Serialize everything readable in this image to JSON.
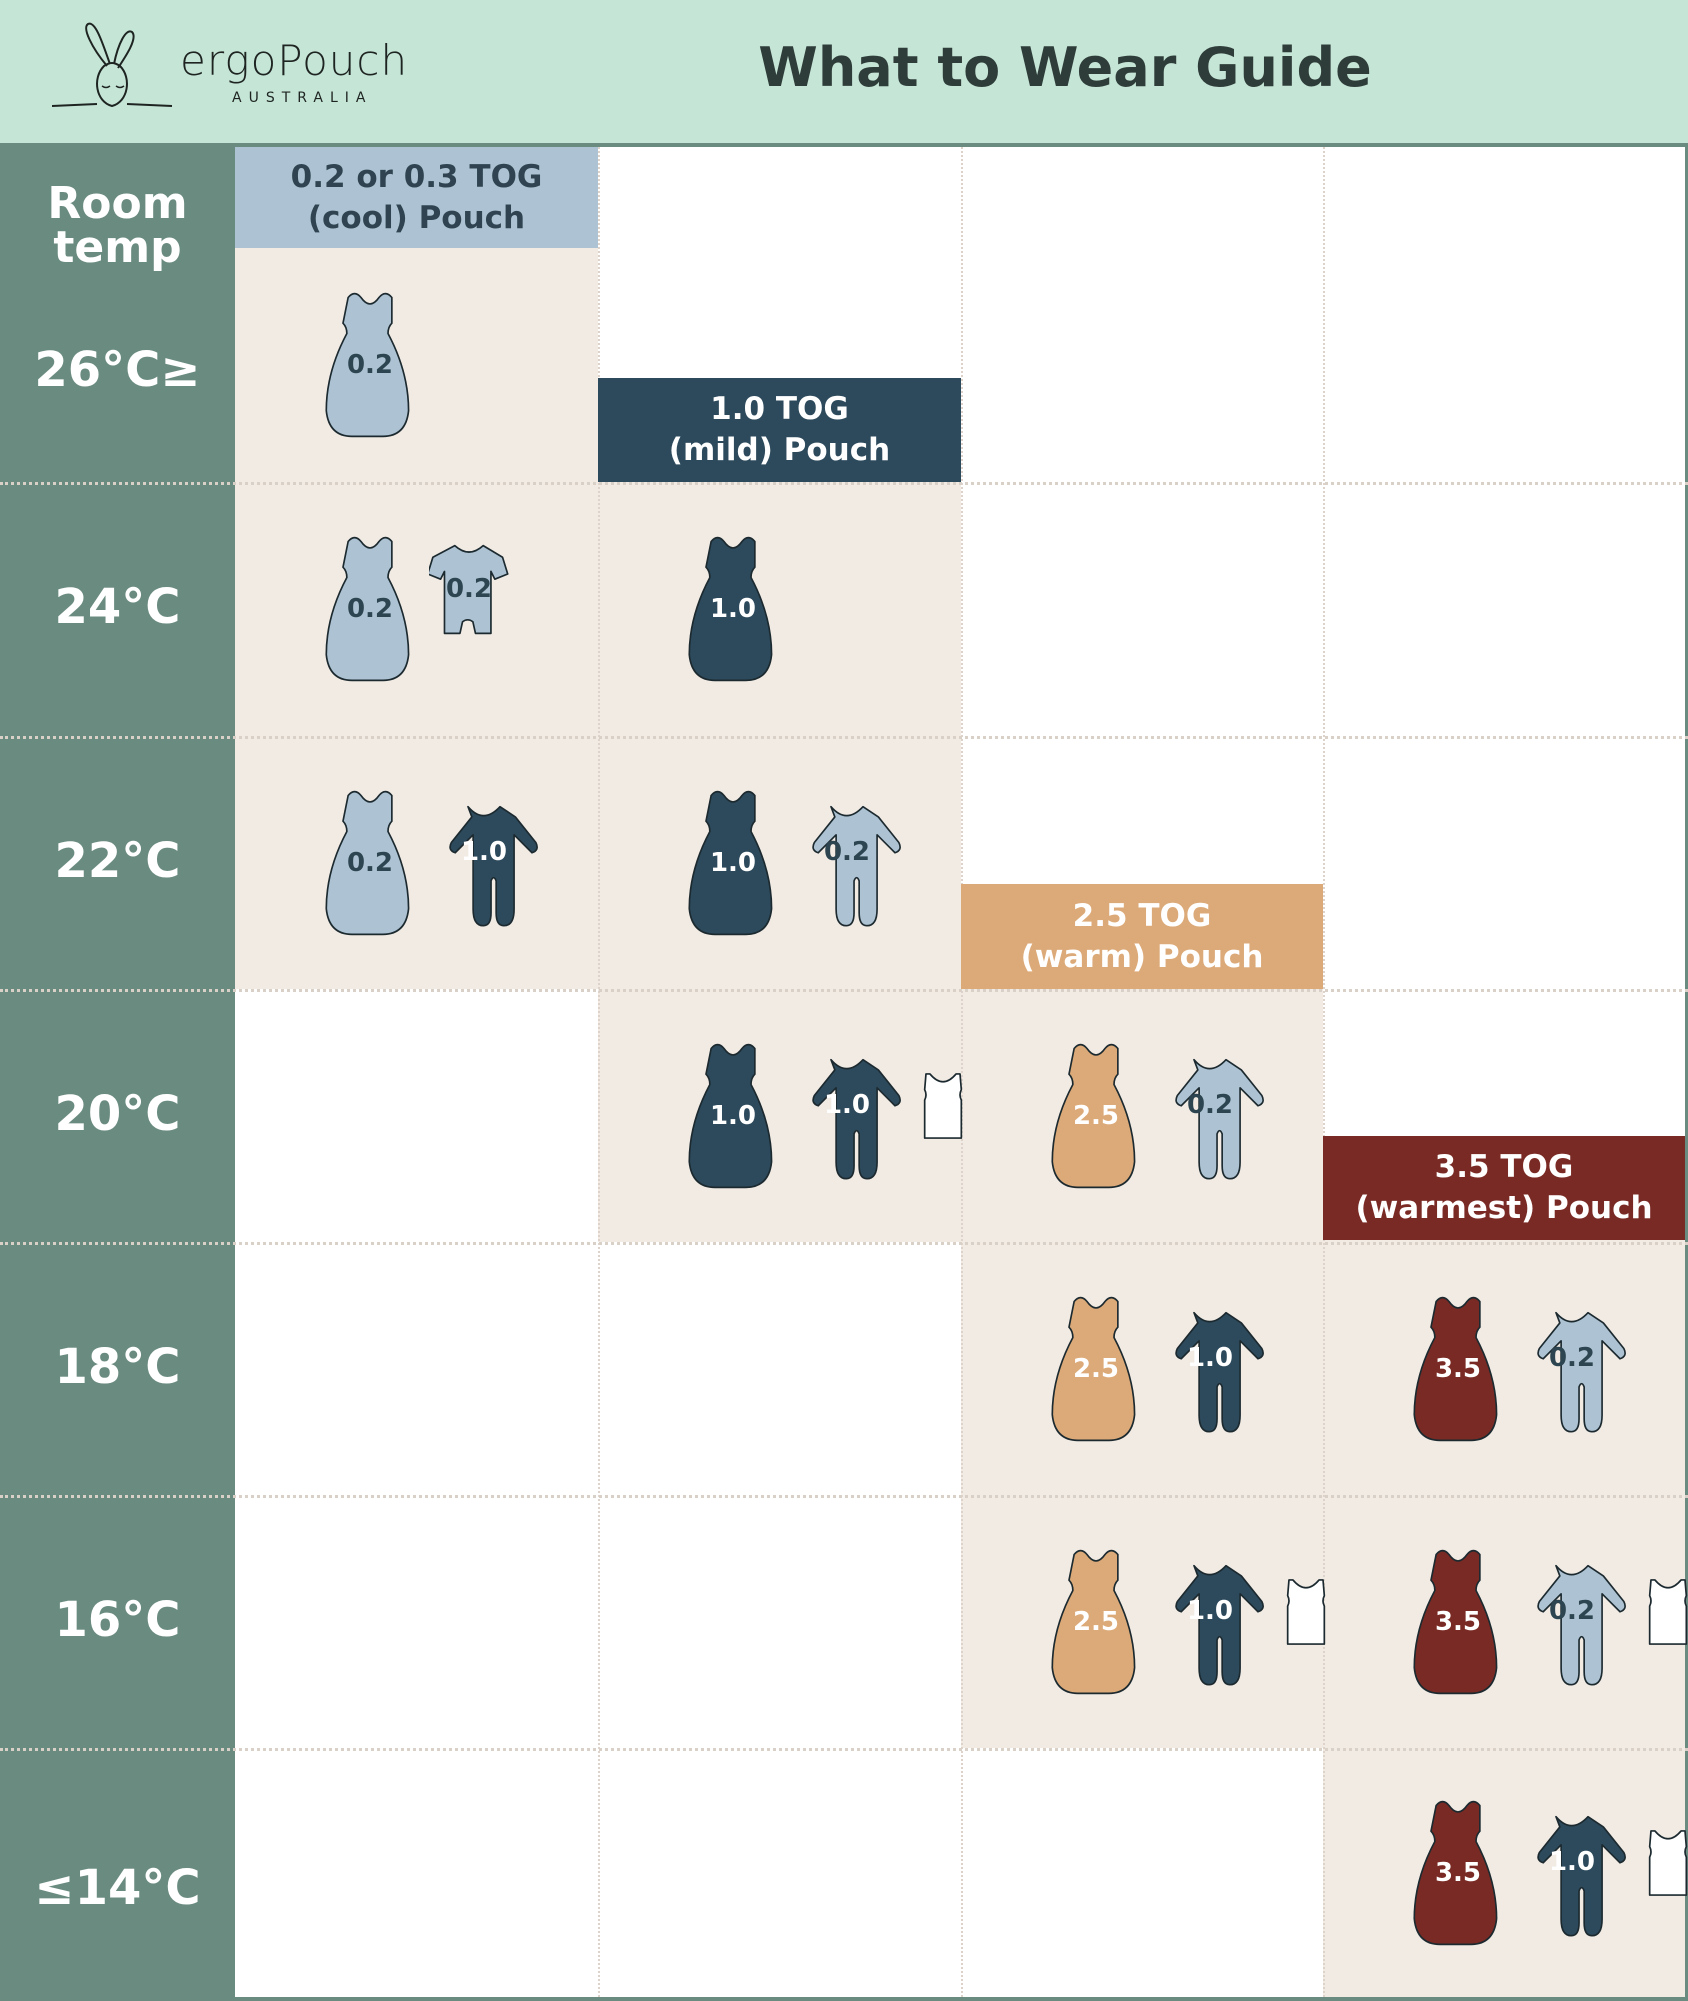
{
  "header": {
    "brand": "ergoPouch",
    "brand_sub": "AUSTRALIA",
    "title": "What to Wear Guide"
  },
  "left_header": {
    "line1": "Room",
    "line2": "temp"
  },
  "temps": [
    "26°C≥",
    "24°C",
    "22°C",
    "20°C",
    "18°C",
    "16°C",
    "≤14°C"
  ],
  "colors": {
    "cool": "#adc3d3",
    "mild": "#2d4a5c",
    "warm": "#dcaa78",
    "warmest": "#7a2a24",
    "singlet": "#ffffff",
    "beige": "#f2ebe4",
    "sidebar": "#6a8b80",
    "header": "#c5e5d6"
  },
  "bands": [
    {
      "line1": "0.2 or 0.3 TOG",
      "line2": "(cool) Pouch",
      "tone": "cool"
    },
    {
      "line1": "1.0 TOG",
      "line2": "(mild) Pouch",
      "tone": "mild"
    },
    {
      "line1": "2.5 TOG",
      "line2": "(warm) Pouch",
      "tone": "warm"
    },
    {
      "line1": "3.5 TOG",
      "line2": "(warmest) Pouch",
      "tone": "warmest"
    }
  ],
  "cells": [
    {
      "row": 0,
      "col": 0,
      "items": [
        {
          "type": "sleeping-bag",
          "label": "0.2",
          "tone": "cool"
        }
      ]
    },
    {
      "row": 1,
      "col": 0,
      "items": [
        {
          "type": "sleeping-bag",
          "label": "0.2",
          "tone": "cool"
        },
        {
          "type": "romper",
          "label": "0.2",
          "tone": "cool"
        }
      ]
    },
    {
      "row": 1,
      "col": 1,
      "items": [
        {
          "type": "sleeping-bag",
          "label": "1.0",
          "tone": "mild"
        }
      ]
    },
    {
      "row": 2,
      "col": 0,
      "items": [
        {
          "type": "sleeping-bag",
          "label": "0.2",
          "tone": "cool"
        },
        {
          "type": "sleepsuit",
          "label": "1.0",
          "tone": "mild"
        }
      ]
    },
    {
      "row": 2,
      "col": 1,
      "items": [
        {
          "type": "sleeping-bag",
          "label": "1.0",
          "tone": "mild"
        },
        {
          "type": "sleepsuit",
          "label": "0.2",
          "tone": "cool"
        }
      ]
    },
    {
      "row": 3,
      "col": 1,
      "items": [
        {
          "type": "sleeping-bag",
          "label": "1.0",
          "tone": "mild"
        },
        {
          "type": "sleepsuit",
          "label": "1.0",
          "tone": "mild"
        },
        {
          "type": "singlet",
          "label": "",
          "tone": "singlet"
        }
      ]
    },
    {
      "row": 3,
      "col": 2,
      "items": [
        {
          "type": "sleeping-bag",
          "label": "2.5",
          "tone": "warm"
        },
        {
          "type": "sleepsuit",
          "label": "0.2",
          "tone": "cool"
        }
      ]
    },
    {
      "row": 4,
      "col": 2,
      "items": [
        {
          "type": "sleeping-bag",
          "label": "2.5",
          "tone": "warm"
        },
        {
          "type": "sleepsuit",
          "label": "1.0",
          "tone": "mild"
        }
      ]
    },
    {
      "row": 4,
      "col": 3,
      "items": [
        {
          "type": "sleeping-bag",
          "label": "3.5",
          "tone": "warmest"
        },
        {
          "type": "sleepsuit",
          "label": "0.2",
          "tone": "cool"
        }
      ]
    },
    {
      "row": 5,
      "col": 2,
      "items": [
        {
          "type": "sleeping-bag",
          "label": "2.5",
          "tone": "warm"
        },
        {
          "type": "sleepsuit",
          "label": "1.0",
          "tone": "mild"
        },
        {
          "type": "singlet",
          "label": "",
          "tone": "singlet"
        }
      ]
    },
    {
      "row": 5,
      "col": 3,
      "items": [
        {
          "type": "sleeping-bag",
          "label": "3.5",
          "tone": "warmest"
        },
        {
          "type": "sleepsuit",
          "label": "0.2",
          "tone": "cool"
        },
        {
          "type": "singlet",
          "label": "",
          "tone": "singlet"
        }
      ]
    },
    {
      "row": 6,
      "col": 3,
      "items": [
        {
          "type": "sleeping-bag",
          "label": "3.5",
          "tone": "warmest"
        },
        {
          "type": "sleepsuit",
          "label": "1.0",
          "tone": "mild"
        },
        {
          "type": "singlet",
          "label": "",
          "tone": "singlet"
        }
      ]
    }
  ]
}
